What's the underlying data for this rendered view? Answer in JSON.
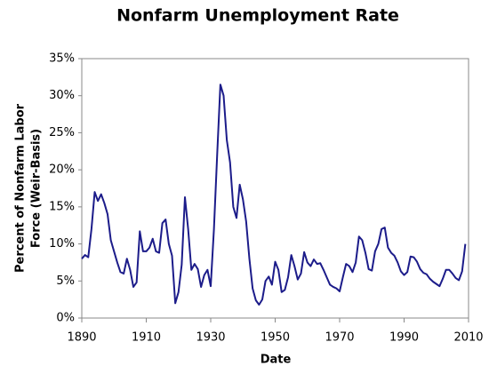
{
  "chart_data": {
    "type": "line",
    "title": "Nonfarm Unemployment Rate",
    "xlabel": "Date",
    "ylabel": [
      "Percent of Nonfarm Labor",
      "Force (Weir-Basis)"
    ],
    "x": [
      1890,
      1891,
      1892,
      1893,
      1894,
      1895,
      1896,
      1897,
      1898,
      1899,
      1900,
      1901,
      1902,
      1903,
      1904,
      1905,
      1906,
      1907,
      1908,
      1909,
      1910,
      1911,
      1912,
      1913,
      1914,
      1915,
      1916,
      1917,
      1918,
      1919,
      1920,
      1921,
      1922,
      1923,
      1924,
      1925,
      1926,
      1927,
      1928,
      1929,
      1930,
      1931,
      1932,
      1933,
      1934,
      1935,
      1936,
      1937,
      1938,
      1939,
      1940,
      1941,
      1942,
      1943,
      1944,
      1945,
      1946,
      1947,
      1948,
      1949,
      1950,
      1951,
      1952,
      1953,
      1954,
      1955,
      1956,
      1957,
      1958,
      1959,
      1960,
      1961,
      1962,
      1963,
      1964,
      1965,
      1966,
      1967,
      1968,
      1969,
      1970,
      1971,
      1972,
      1973,
      1974,
      1975,
      1976,
      1977,
      1978,
      1979,
      1980,
      1981,
      1982,
      1983,
      1984,
      1985,
      1986,
      1987,
      1988,
      1989,
      1990,
      1991,
      1992,
      1993,
      1994,
      1995,
      1996,
      1997,
      1998,
      1999,
      2000,
      2001,
      2002,
      2003,
      2004,
      2005,
      2006,
      2007,
      2008,
      2009
    ],
    "series": [
      {
        "name": "Unemployment rate",
        "color": "#1c1c8a",
        "values": [
          8.0,
          8.5,
          8.2,
          12,
          17,
          15.8,
          16.7,
          15.5,
          14,
          10.5,
          9,
          7.5,
          6.2,
          6,
          8,
          6.5,
          4.2,
          4.8,
          11.7,
          9,
          9,
          9.5,
          10.7,
          9,
          8.8,
          12.8,
          13.3,
          10,
          8.4,
          2,
          3.5,
          7.2,
          16.3,
          12,
          6.5,
          7.3,
          6.6,
          4.2,
          5.8,
          6.5,
          4.3,
          12,
          22,
          31.5,
          30,
          24,
          21,
          15,
          13.5,
          18,
          16,
          13,
          8,
          4,
          2.4,
          1.8,
          2.5,
          5,
          5.6,
          4.5,
          7.6,
          6.5,
          3.5,
          3.8,
          5.5,
          8.5,
          7,
          5.2,
          6,
          8.9,
          7.5,
          7,
          7.9,
          7.3,
          7.4,
          6.5,
          5.5,
          4.5,
          4.2,
          4,
          3.6,
          5.5,
          7.3,
          7,
          6.2,
          7.5,
          11,
          10.5,
          8.8,
          6.6,
          6.4,
          9,
          10,
          12,
          12.2,
          9.5,
          8.8,
          8.4,
          7.5,
          6.3,
          5.8,
          6.2,
          8.3,
          8.2,
          7.6,
          6.6,
          6.1,
          5.9,
          5.3,
          4.9,
          4.6,
          4.3,
          5.3,
          6.5,
          6.5,
          6.0,
          5.4,
          5.1,
          6.3,
          10
        ]
      }
    ],
    "xlim": [
      1890,
      2010
    ],
    "xticks": [
      1890,
      1910,
      1930,
      1950,
      1970,
      1990,
      2010
    ],
    "ylim": [
      0,
      35
    ],
    "yticks": [
      {
        "value": 0,
        "label": "0%"
      },
      {
        "value": 5,
        "label": "5%"
      },
      {
        "value": 10,
        "label": "10%"
      },
      {
        "value": 15,
        "label": "15%"
      },
      {
        "value": 20,
        "label": "20%"
      },
      {
        "value": 25,
        "label": "25%"
      },
      {
        "value": 30,
        "label": "30%"
      },
      {
        "value": 35,
        "label": "35%"
      }
    ],
    "grid": false
  }
}
